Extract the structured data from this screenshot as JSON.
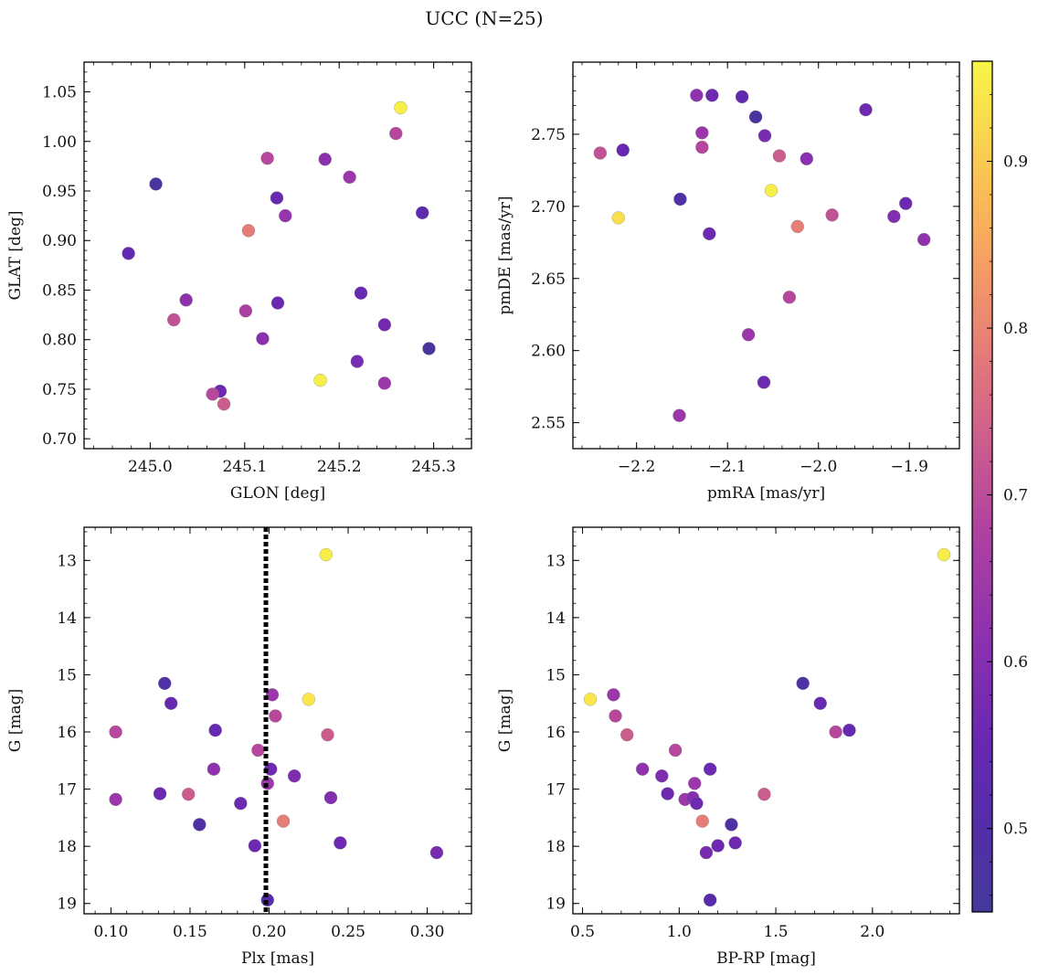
{
  "figure": {
    "title": "UCC (N=25)"
  },
  "colorbar": {
    "colormap": "plasma",
    "range": [
      0.45,
      0.96
    ],
    "ticks": [
      0.5,
      0.6,
      0.7,
      0.8,
      0.9
    ],
    "tick_labels": [
      "0.5",
      "0.6",
      "0.7",
      "0.8",
      "0.9"
    ]
  },
  "chart_data": [
    {
      "type": "scatter",
      "xlabel": "GLON [deg]",
      "ylabel": "GLAT [deg]",
      "xlim": [
        244.93,
        245.34
      ],
      "ylim": [
        0.69,
        1.08
      ],
      "xticks": [
        245.0,
        245.1,
        245.2,
        245.3
      ],
      "xtick_labels": [
        "245.0",
        "245.1",
        "245.2",
        "245.3"
      ],
      "yticks": [
        0.7,
        0.75,
        0.8,
        0.85,
        0.9,
        0.95,
        1.0,
        1.05
      ],
      "ytick_labels": [
        "0.70",
        "0.75",
        "0.80",
        "0.85",
        "0.90",
        "0.95",
        "1.00",
        "1.05"
      ],
      "y_inverted": false,
      "points": [
        {
          "x": 245.265,
          "y": 1.034,
          "c": 0.95
        },
        {
          "x": 245.26,
          "y": 1.008,
          "c": 0.69
        },
        {
          "x": 245.124,
          "y": 0.983,
          "c": 0.69
        },
        {
          "x": 245.185,
          "y": 0.982,
          "c": 0.61
        },
        {
          "x": 245.211,
          "y": 0.964,
          "c": 0.64
        },
        {
          "x": 245.006,
          "y": 0.957,
          "c": 0.47
        },
        {
          "x": 245.134,
          "y": 0.943,
          "c": 0.55
        },
        {
          "x": 245.288,
          "y": 0.928,
          "c": 0.53
        },
        {
          "x": 245.143,
          "y": 0.925,
          "c": 0.63
        },
        {
          "x": 245.104,
          "y": 0.91,
          "c": 0.79
        },
        {
          "x": 244.977,
          "y": 0.887,
          "c": 0.54
        },
        {
          "x": 245.223,
          "y": 0.847,
          "c": 0.55
        },
        {
          "x": 245.038,
          "y": 0.84,
          "c": 0.62
        },
        {
          "x": 245.135,
          "y": 0.837,
          "c": 0.56
        },
        {
          "x": 245.101,
          "y": 0.829,
          "c": 0.67
        },
        {
          "x": 245.025,
          "y": 0.82,
          "c": 0.71
        },
        {
          "x": 245.248,
          "y": 0.815,
          "c": 0.57
        },
        {
          "x": 245.119,
          "y": 0.801,
          "c": 0.61
        },
        {
          "x": 245.295,
          "y": 0.791,
          "c": 0.47
        },
        {
          "x": 245.219,
          "y": 0.778,
          "c": 0.58
        },
        {
          "x": 245.18,
          "y": 0.759,
          "c": 0.95
        },
        {
          "x": 245.248,
          "y": 0.756,
          "c": 0.64
        },
        {
          "x": 245.074,
          "y": 0.748,
          "c": 0.56
        },
        {
          "x": 245.066,
          "y": 0.745,
          "c": 0.69
        },
        {
          "x": 245.078,
          "y": 0.735,
          "c": 0.73
        }
      ]
    },
    {
      "type": "scatter",
      "xlabel": "pmRA [mas/yr]",
      "ylabel": "pmDE [mas/yr]",
      "xlim": [
        -2.27,
        -1.845
      ],
      "ylim": [
        2.532,
        2.8
      ],
      "xticks": [
        -2.2,
        -2.1,
        -2.0,
        -1.9
      ],
      "xtick_labels": [
        "−2.2",
        "−2.1",
        "−2.0",
        "−1.9"
      ],
      "yticks": [
        2.55,
        2.6,
        2.65,
        2.7,
        2.75
      ],
      "ytick_labels": [
        "2.55",
        "2.60",
        "2.65",
        "2.70",
        "2.75"
      ],
      "y_inverted": false,
      "points": [
        {
          "x": -2.134,
          "y": 2.777,
          "c": 0.62
        },
        {
          "x": -2.117,
          "y": 2.777,
          "c": 0.56
        },
        {
          "x": -2.084,
          "y": 2.776,
          "c": 0.53
        },
        {
          "x": -2.069,
          "y": 2.762,
          "c": 0.47
        },
        {
          "x": -1.948,
          "y": 2.767,
          "c": 0.56
        },
        {
          "x": -2.128,
          "y": 2.751,
          "c": 0.64
        },
        {
          "x": -2.059,
          "y": 2.749,
          "c": 0.58
        },
        {
          "x": -2.128,
          "y": 2.741,
          "c": 0.69
        },
        {
          "x": -2.24,
          "y": 2.737,
          "c": 0.71
        },
        {
          "x": -2.215,
          "y": 2.739,
          "c": 0.55
        },
        {
          "x": -2.043,
          "y": 2.735,
          "c": 0.73
        },
        {
          "x": -2.013,
          "y": 2.733,
          "c": 0.61
        },
        {
          "x": -2.052,
          "y": 2.711,
          "c": 0.95
        },
        {
          "x": -2.152,
          "y": 2.705,
          "c": 0.49
        },
        {
          "x": -1.904,
          "y": 2.702,
          "c": 0.56
        },
        {
          "x": -1.985,
          "y": 2.694,
          "c": 0.71
        },
        {
          "x": -1.917,
          "y": 2.693,
          "c": 0.6
        },
        {
          "x": -2.22,
          "y": 2.692,
          "c": 0.93
        },
        {
          "x": -2.023,
          "y": 2.686,
          "c": 0.79
        },
        {
          "x": -2.12,
          "y": 2.681,
          "c": 0.56
        },
        {
          "x": -1.884,
          "y": 2.677,
          "c": 0.62
        },
        {
          "x": -2.032,
          "y": 2.637,
          "c": 0.69
        },
        {
          "x": -2.077,
          "y": 2.611,
          "c": 0.64
        },
        {
          "x": -2.06,
          "y": 2.578,
          "c": 0.56
        },
        {
          "x": -2.153,
          "y": 2.555,
          "c": 0.64
        }
      ]
    },
    {
      "type": "scatter",
      "xlabel": "Plx [mas]",
      "ylabel": "G [mag]",
      "xlim": [
        0.083,
        0.328
      ],
      "ylim": [
        19.18,
        12.42
      ],
      "xticks": [
        0.1,
        0.15,
        0.2,
        0.25,
        0.3
      ],
      "xtick_labels": [
        "0.10",
        "0.15",
        "0.20",
        "0.25",
        "0.30"
      ],
      "yticks": [
        13,
        14,
        15,
        16,
        17,
        18,
        19
      ],
      "ytick_labels": [
        "13",
        "14",
        "15",
        "16",
        "17",
        "18",
        "19"
      ],
      "y_inverted": true,
      "vline": {
        "x": 0.198,
        "style": "dotted",
        "color": "#000000"
      },
      "points": [
        {
          "x": 0.236,
          "y": 12.9,
          "c": 0.95
        },
        {
          "x": 0.134,
          "y": 15.15,
          "c": 0.49
        },
        {
          "x": 0.202,
          "y": 15.35,
          "c": 0.64
        },
        {
          "x": 0.225,
          "y": 15.43,
          "c": 0.94
        },
        {
          "x": 0.138,
          "y": 15.5,
          "c": 0.55
        },
        {
          "x": 0.204,
          "y": 15.72,
          "c": 0.69
        },
        {
          "x": 0.166,
          "y": 15.97,
          "c": 0.55
        },
        {
          "x": 0.103,
          "y": 16.0,
          "c": 0.69
        },
        {
          "x": 0.237,
          "y": 16.05,
          "c": 0.73
        },
        {
          "x": 0.193,
          "y": 16.32,
          "c": 0.69
        },
        {
          "x": 0.165,
          "y": 16.65,
          "c": 0.62
        },
        {
          "x": 0.201,
          "y": 16.65,
          "c": 0.56
        },
        {
          "x": 0.216,
          "y": 16.77,
          "c": 0.59
        },
        {
          "x": 0.199,
          "y": 16.9,
          "c": 0.64
        },
        {
          "x": 0.131,
          "y": 17.08,
          "c": 0.56
        },
        {
          "x": 0.149,
          "y": 17.09,
          "c": 0.73
        },
        {
          "x": 0.103,
          "y": 17.18,
          "c": 0.64
        },
        {
          "x": 0.239,
          "y": 17.15,
          "c": 0.6
        },
        {
          "x": 0.182,
          "y": 17.25,
          "c": 0.56
        },
        {
          "x": 0.209,
          "y": 17.56,
          "c": 0.79
        },
        {
          "x": 0.156,
          "y": 17.62,
          "c": 0.49
        },
        {
          "x": 0.245,
          "y": 17.94,
          "c": 0.56
        },
        {
          "x": 0.191,
          "y": 17.99,
          "c": 0.56
        },
        {
          "x": 0.306,
          "y": 18.11,
          "c": 0.58
        },
        {
          "x": 0.199,
          "y": 18.94,
          "c": 0.51
        }
      ]
    },
    {
      "type": "scatter",
      "xlabel": "BP-RP [mag]",
      "ylabel": "G [mag]",
      "xlim": [
        0.45,
        2.45
      ],
      "ylim": [
        19.18,
        12.42
      ],
      "xticks": [
        0.5,
        1.0,
        1.5,
        2.0
      ],
      "xtick_labels": [
        "0.5",
        "1.0",
        "1.5",
        "2.0"
      ],
      "yticks": [
        13,
        14,
        15,
        16,
        17,
        18,
        19
      ],
      "ytick_labels": [
        "13",
        "14",
        "15",
        "16",
        "17",
        "18",
        "19"
      ],
      "y_inverted": true,
      "points": [
        {
          "x": 2.37,
          "y": 12.9,
          "c": 0.95
        },
        {
          "x": 1.64,
          "y": 15.15,
          "c": 0.49
        },
        {
          "x": 0.66,
          "y": 15.35,
          "c": 0.64
        },
        {
          "x": 0.54,
          "y": 15.43,
          "c": 0.94
        },
        {
          "x": 1.73,
          "y": 15.5,
          "c": 0.55
        },
        {
          "x": 0.67,
          "y": 15.72,
          "c": 0.69
        },
        {
          "x": 1.88,
          "y": 15.97,
          "c": 0.55
        },
        {
          "x": 1.81,
          "y": 16.0,
          "c": 0.69
        },
        {
          "x": 0.73,
          "y": 16.05,
          "c": 0.73
        },
        {
          "x": 0.98,
          "y": 16.32,
          "c": 0.69
        },
        {
          "x": 0.81,
          "y": 16.65,
          "c": 0.62
        },
        {
          "x": 1.16,
          "y": 16.65,
          "c": 0.56
        },
        {
          "x": 0.91,
          "y": 16.77,
          "c": 0.59
        },
        {
          "x": 1.08,
          "y": 16.9,
          "c": 0.64
        },
        {
          "x": 0.94,
          "y": 17.08,
          "c": 0.56
        },
        {
          "x": 1.44,
          "y": 17.09,
          "c": 0.73
        },
        {
          "x": 1.03,
          "y": 17.18,
          "c": 0.64
        },
        {
          "x": 1.07,
          "y": 17.15,
          "c": 0.6
        },
        {
          "x": 1.09,
          "y": 17.25,
          "c": 0.56
        },
        {
          "x": 1.12,
          "y": 17.56,
          "c": 0.79
        },
        {
          "x": 1.27,
          "y": 17.62,
          "c": 0.49
        },
        {
          "x": 1.29,
          "y": 17.94,
          "c": 0.56
        },
        {
          "x": 1.2,
          "y": 17.99,
          "c": 0.56
        },
        {
          "x": 1.14,
          "y": 18.11,
          "c": 0.58
        },
        {
          "x": 1.16,
          "y": 18.94,
          "c": 0.51
        }
      ]
    }
  ]
}
